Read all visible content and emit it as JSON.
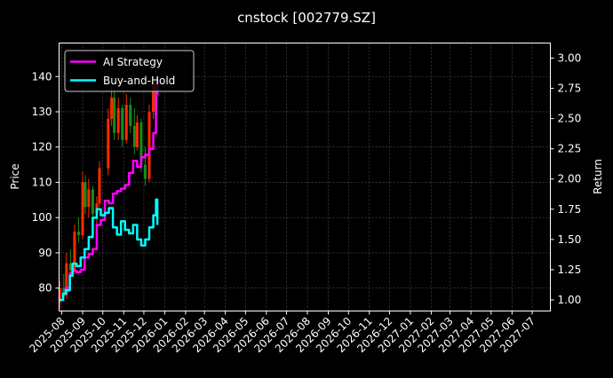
{
  "chart_data": {
    "type": "line",
    "title": "cnstock [002779.SZ]",
    "ylabel": "Price",
    "y2label": "Return",
    "ylim": [
      73.5,
      149.5
    ],
    "y2lim": [
      0.908,
      3.125
    ],
    "yticks": [
      80,
      90,
      100,
      110,
      120,
      130,
      140
    ],
    "y2ticks": [
      "1.00",
      "1.25",
      "1.50",
      "1.75",
      "2.00",
      "2.25",
      "2.50",
      "2.75",
      "3.00"
    ],
    "x_axis": "date",
    "xlim": [
      "2025-07-28",
      "2027-07-28"
    ],
    "xtick_labels": [
      "2025-08",
      "2025-09",
      "2025-10",
      "2025-11",
      "2025-12",
      "2026-01",
      "2026-02",
      "2026-03",
      "2026-04",
      "2026-05",
      "2026-06",
      "2026-07",
      "2026-08",
      "2026-09",
      "2026-10",
      "2026-11",
      "2026-12",
      "2027-01",
      "2027-02",
      "2027-03",
      "2027-04",
      "2027-05",
      "2027-06",
      "2027-07"
    ],
    "grid": true,
    "legend_position": "top-left",
    "colors": {
      "ai_strategy": "#ff00ff",
      "buy_and_hold": "#00ffff",
      "candle_up": "#ff2a00",
      "candle_down": "#1a8c1a",
      "background": "#000000",
      "grid": "#555555"
    },
    "legend": [
      {
        "label": "AI Strategy",
        "color": "#ff00ff"
      },
      {
        "label": "Buy-and-Hold",
        "color": "#00ffff"
      }
    ],
    "candles": [
      {
        "date": "2025-07-29",
        "o": 76,
        "h": 82,
        "l": 74,
        "c": 80
      },
      {
        "date": "2025-08-04",
        "o": 80,
        "h": 84,
        "l": 77,
        "c": 78
      },
      {
        "date": "2025-08-08",
        "o": 78,
        "h": 90,
        "l": 77,
        "c": 87
      },
      {
        "date": "2025-08-14",
        "o": 87,
        "h": 91,
        "l": 84,
        "c": 85
      },
      {
        "date": "2025-08-20",
        "o": 85,
        "h": 98,
        "l": 84,
        "c": 96
      },
      {
        "date": "2025-08-26",
        "o": 96,
        "h": 100,
        "l": 93,
        "c": 95
      },
      {
        "date": "2025-09-01",
        "o": 95,
        "h": 113,
        "l": 94,
        "c": 110
      },
      {
        "date": "2025-09-05",
        "o": 110,
        "h": 112,
        "l": 101,
        "c": 103
      },
      {
        "date": "2025-09-10",
        "o": 103,
        "h": 111,
        "l": 100,
        "c": 108
      },
      {
        "date": "2025-09-16",
        "o": 108,
        "h": 109,
        "l": 99,
        "c": 101
      },
      {
        "date": "2025-09-22",
        "o": 101,
        "h": 106,
        "l": 97,
        "c": 104
      },
      {
        "date": "2025-09-26",
        "o": 104,
        "h": 116,
        "l": 103,
        "c": 114
      },
      {
        "date": "2025-10-09",
        "o": 114,
        "h": 131,
        "l": 112,
        "c": 128
      },
      {
        "date": "2025-10-14",
        "o": 128,
        "h": 137,
        "l": 126,
        "c": 134
      },
      {
        "date": "2025-10-18",
        "o": 134,
        "h": 136,
        "l": 122,
        "c": 124
      },
      {
        "date": "2025-10-24",
        "o": 124,
        "h": 134,
        "l": 122,
        "c": 131
      },
      {
        "date": "2025-10-30",
        "o": 131,
        "h": 132,
        "l": 120,
        "c": 122
      },
      {
        "date": "2025-11-05",
        "o": 122,
        "h": 135,
        "l": 121,
        "c": 132
      },
      {
        "date": "2025-11-11",
        "o": 132,
        "h": 134,
        "l": 124,
        "c": 126
      },
      {
        "date": "2025-11-17",
        "o": 126,
        "h": 131,
        "l": 118,
        "c": 120
      },
      {
        "date": "2025-11-21",
        "o": 120,
        "h": 129,
        "l": 119,
        "c": 127
      },
      {
        "date": "2025-11-27",
        "o": 127,
        "h": 128,
        "l": 113,
        "c": 115
      },
      {
        "date": "2025-12-03",
        "o": 115,
        "h": 120,
        "l": 109,
        "c": 111
      },
      {
        "date": "2025-12-09",
        "o": 111,
        "h": 132,
        "l": 110,
        "c": 130
      },
      {
        "date": "2025-12-15",
        "o": 130,
        "h": 140,
        "l": 128,
        "c": 138
      },
      {
        "date": "2025-12-19",
        "o": 138,
        "h": 142,
        "l": 126,
        "c": 129
      }
    ],
    "series": [
      {
        "name": "AI Strategy",
        "x": [
          "2025-07-28",
          "2025-08-03",
          "2025-08-07",
          "2025-08-13",
          "2025-08-17",
          "2025-08-23",
          "2025-08-29",
          "2025-09-04",
          "2025-09-10",
          "2025-09-16",
          "2025-09-22",
          "2025-09-28",
          "2025-10-04",
          "2025-10-10",
          "2025-10-16",
          "2025-10-22",
          "2025-10-28",
          "2025-11-03",
          "2025-11-09",
          "2025-11-15",
          "2025-11-21",
          "2025-11-27",
          "2025-12-03",
          "2025-12-09",
          "2025-12-15",
          "2025-12-19",
          "2025-12-21"
        ],
        "y": [
          1.0,
          1.05,
          1.1,
          1.22,
          1.24,
          1.23,
          1.25,
          1.35,
          1.38,
          1.42,
          1.62,
          1.66,
          1.82,
          1.8,
          1.88,
          1.9,
          1.92,
          1.95,
          2.05,
          2.15,
          2.1,
          2.18,
          2.2,
          2.25,
          2.38,
          2.7,
          2.85
        ]
      },
      {
        "name": "Buy-and-Hold",
        "x": [
          "2025-07-28",
          "2025-08-03",
          "2025-08-07",
          "2025-08-13",
          "2025-08-17",
          "2025-08-23",
          "2025-08-29",
          "2025-09-04",
          "2025-09-10",
          "2025-09-16",
          "2025-09-22",
          "2025-09-28",
          "2025-10-04",
          "2025-10-10",
          "2025-10-16",
          "2025-10-22",
          "2025-10-28",
          "2025-11-03",
          "2025-11-09",
          "2025-11-15",
          "2025-11-21",
          "2025-11-27",
          "2025-12-03",
          "2025-12-09",
          "2025-12-15",
          "2025-12-19",
          "2025-12-21"
        ],
        "y": [
          1.0,
          1.05,
          1.08,
          1.2,
          1.3,
          1.28,
          1.35,
          1.42,
          1.52,
          1.68,
          1.75,
          1.7,
          1.72,
          1.76,
          1.6,
          1.54,
          1.65,
          1.58,
          1.55,
          1.62,
          1.5,
          1.45,
          1.5,
          1.6,
          1.7,
          1.83,
          1.62
        ]
      }
    ]
  }
}
